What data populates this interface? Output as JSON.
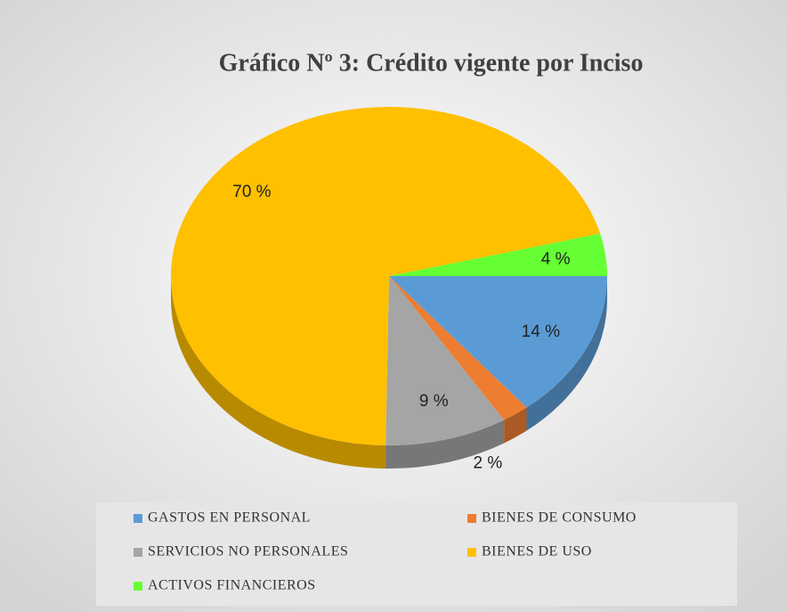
{
  "chart_data": {
    "type": "pie3d",
    "title": "Gráfico Nº 3: Crédito vigente por Inciso",
    "categories": [
      "GASTOS EN PERSONAL",
      "BIENES DE CONSUMO",
      "SERVICIOS NO PERSONALES",
      "BIENES DE USO",
      "ACTIVOS FINANCIEROS"
    ],
    "values": [
      14,
      2,
      9,
      70,
      4
    ],
    "value_labels": [
      "14 %",
      "2 %",
      "9 %",
      "70 %",
      "4 %"
    ],
    "colors": [
      "#5b9bd5",
      "#ed7d31",
      "#a5a5a5",
      "#ffc000",
      "#66ff33"
    ],
    "legend": "bottom"
  }
}
